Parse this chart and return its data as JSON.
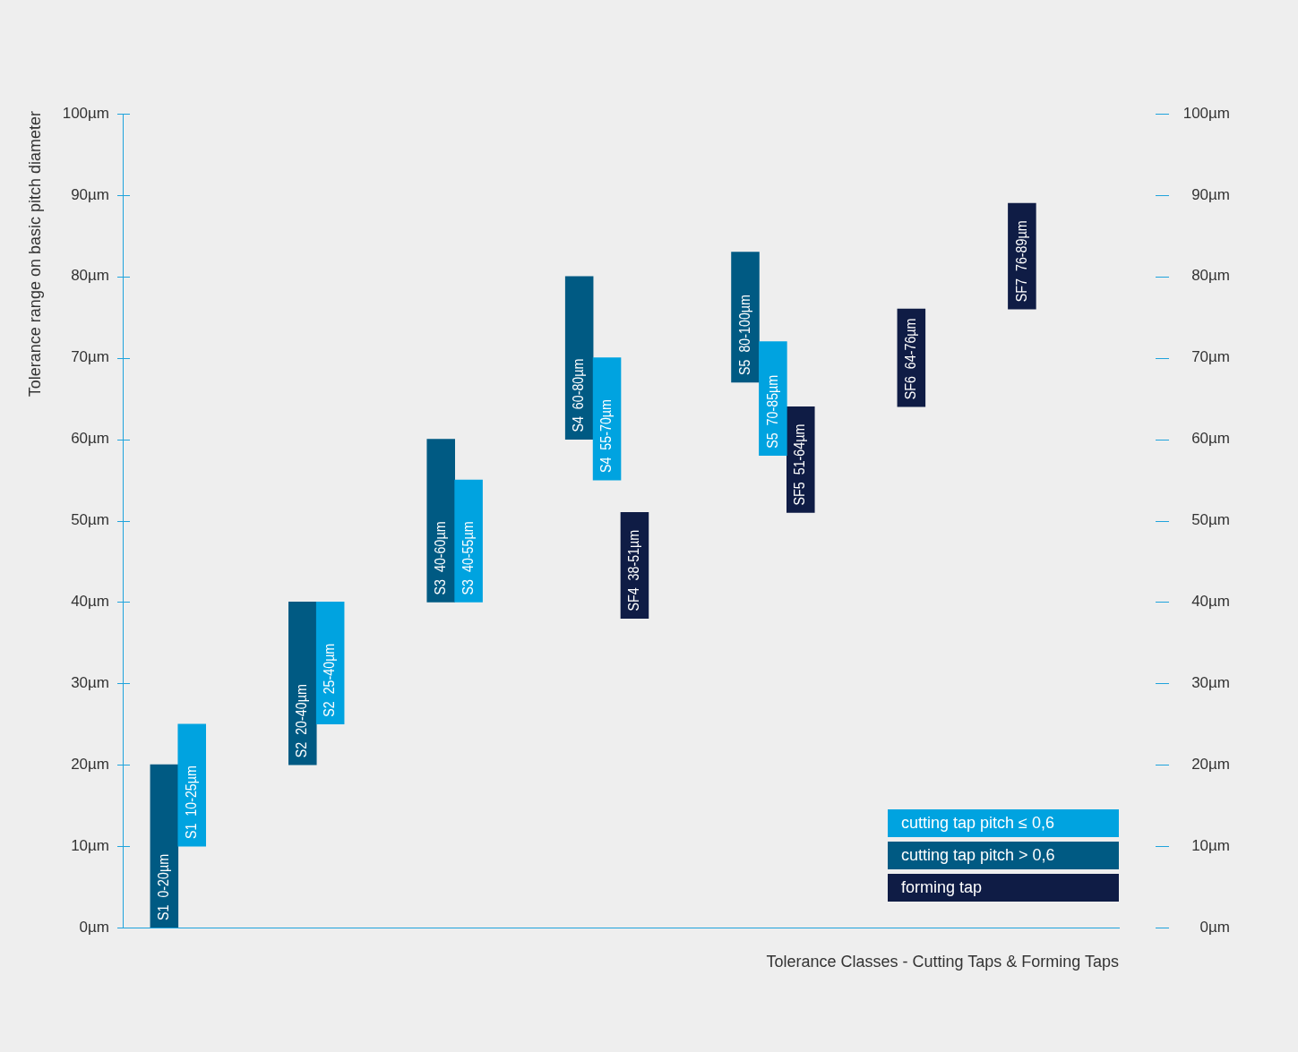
{
  "chart_data": {
    "type": "bar",
    "ylabel": "Tolerance range on basic pitch diameter",
    "xlabel": "Tolerance Classes - Cutting Taps & Forming Taps",
    "categories": [
      null,
      null,
      null,
      null,
      null,
      null,
      null,
      null,
      null,
      null,
      null,
      null,
      null,
      null,
      null,
      null,
      null,
      null,
      null,
      null,
      null,
      null,
      null,
      null,
      null,
      null,
      null,
      null,
      null,
      null,
      null,
      null,
      null,
      null,
      null,
      null
    ],
    "series": [
      {
        "name": "cutting tap pitch ≤ 0,6",
        "color": "#00a3e0",
        "values": [
          null,
          null,
          15,
          null,
          null,
          null,
          null,
          15,
          null,
          null,
          null,
          null,
          15,
          null,
          null,
          null,
          null,
          15,
          null,
          null,
          null,
          null,
          null,
          14,
          null,
          null,
          null,
          null,
          null,
          null,
          null,
          null,
          null,
          null,
          null,
          null
        ],
        "base": [
          null,
          null,
          10,
          null,
          null,
          null,
          null,
          25,
          null,
          null,
          null,
          null,
          40,
          null,
          null,
          null,
          null,
          55,
          null,
          null,
          null,
          null,
          null,
          58,
          null,
          null,
          null,
          null,
          null,
          null,
          null,
          null,
          null,
          null,
          null,
          null
        ],
        "value_labels": [
          null,
          null,
          "S1  10-25µm",
          null,
          null,
          null,
          null,
          "S2  25-40µm",
          null,
          null,
          null,
          null,
          "S3  40-55µm",
          null,
          null,
          null,
          null,
          "S4  55-70µm",
          null,
          null,
          null,
          null,
          null,
          "S5  70-85µm",
          null,
          null,
          null,
          null,
          null,
          null,
          null,
          null,
          null,
          null,
          null,
          null
        ]
      },
      {
        "name": "cutting tap pitch > 0,6",
        "color": "#005a83",
        "values": [
          null,
          20,
          null,
          null,
          null,
          null,
          20,
          null,
          null,
          null,
          null,
          20,
          null,
          null,
          null,
          null,
          20,
          null,
          null,
          null,
          null,
          null,
          16,
          null,
          null,
          null,
          null,
          null,
          null,
          null,
          null,
          null,
          null,
          null,
          null,
          null
        ],
        "base": [
          null,
          0,
          null,
          null,
          null,
          null,
          20,
          null,
          null,
          null,
          null,
          40,
          null,
          null,
          null,
          null,
          60,
          null,
          null,
          null,
          null,
          null,
          67,
          null,
          null,
          null,
          null,
          null,
          null,
          null,
          null,
          null,
          null,
          null,
          null,
          null
        ],
        "value_labels": [
          null,
          "S1  0-20µm",
          null,
          null,
          null,
          null,
          "S2  20-40µm",
          null,
          null,
          null,
          null,
          "S3  40-60µm",
          null,
          null,
          null,
          null,
          "S4  60-80µm",
          null,
          null,
          null,
          null,
          null,
          "S5  80-100µm",
          null,
          null,
          null,
          null,
          null,
          null,
          null,
          null,
          null,
          null,
          null,
          null,
          null
        ]
      },
      {
        "name": "forming tap",
        "color": "#0f1c45",
        "values": [
          null,
          null,
          null,
          null,
          null,
          null,
          null,
          null,
          null,
          null,
          null,
          null,
          null,
          null,
          null,
          null,
          null,
          null,
          13,
          null,
          null,
          null,
          null,
          null,
          13,
          null,
          null,
          null,
          12,
          null,
          null,
          null,
          13,
          null,
          null,
          null
        ],
        "base": [
          null,
          null,
          null,
          null,
          null,
          null,
          null,
          null,
          null,
          null,
          null,
          null,
          null,
          null,
          null,
          null,
          null,
          null,
          38,
          null,
          null,
          null,
          null,
          null,
          51,
          null,
          null,
          null,
          64,
          null,
          null,
          null,
          76,
          null,
          null,
          null
        ],
        "value_labels": [
          null,
          null,
          null,
          null,
          null,
          null,
          null,
          null,
          null,
          null,
          null,
          null,
          null,
          null,
          null,
          null,
          null,
          null,
          "SF4  38-51µm",
          null,
          null,
          null,
          null,
          null,
          "SF5  51-64µm",
          null,
          null,
          null,
          "SF6  64-76µm",
          null,
          null,
          null,
          "SF7  76-89µm",
          null,
          null,
          null
        ]
      }
    ],
    "ylim": [
      0,
      100
    ],
    "yticks": [
      {
        "value": 0,
        "label": "0µm"
      },
      {
        "value": 10,
        "label": "10µm"
      },
      {
        "value": 20,
        "label": "20µm"
      },
      {
        "value": 30,
        "label": "30µm"
      },
      {
        "value": 40,
        "label": "40µm"
      },
      {
        "value": 50,
        "label": "50µm"
      },
      {
        "value": 60,
        "label": "60µm"
      },
      {
        "value": 70,
        "label": "70µm"
      },
      {
        "value": 80,
        "label": "80µm"
      },
      {
        "value": 90,
        "label": "90µm"
      },
      {
        "value": 100,
        "label": "100µm"
      }
    ],
    "y2lim": [
      0,
      100
    ],
    "y2ticks": [
      {
        "value": 0,
        "label": "0µm"
      },
      {
        "value": 10,
        "label": "10µm"
      },
      {
        "value": 20,
        "label": "20µm"
      },
      {
        "value": 30,
        "label": "30µm"
      },
      {
        "value": 40,
        "label": "40µm"
      },
      {
        "value": 50,
        "label": "50µm"
      },
      {
        "value": 60,
        "label": "60µm"
      },
      {
        "value": 70,
        "label": "70µm"
      },
      {
        "value": 80,
        "label": "80µm"
      },
      {
        "value": 90,
        "label": "90µm"
      },
      {
        "value": 100,
        "label": "100µm"
      }
    ],
    "grid": false,
    "legend": "bottom right"
  }
}
